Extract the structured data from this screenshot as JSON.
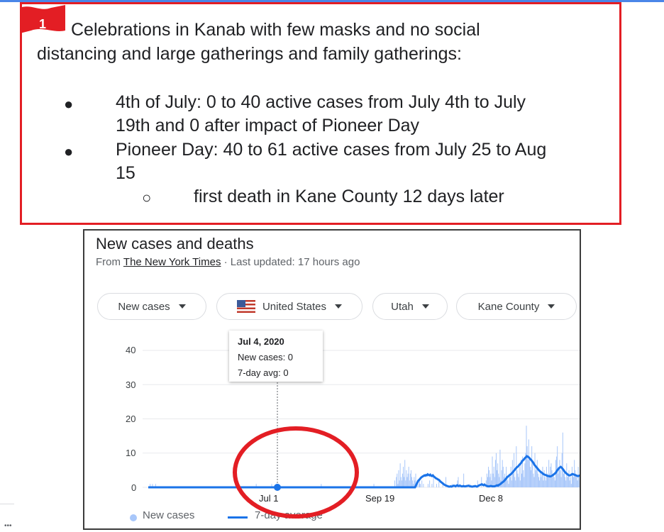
{
  "callout": {
    "flag_number": "1",
    "line1": "Celebrations in Kanab with few masks and no social",
    "line2": "distancing and large gatherings and family gatherings:",
    "bullets": [
      {
        "line1": "4th of July:  0 to 40 active cases from July 4th to July",
        "line2": "19th and 0 after impact of Pioneer Day"
      },
      {
        "line1": "Pioneer Day: 40 to 61 active cases from July 25 to Aug",
        "line2": "15"
      }
    ],
    "sub_bullet": "first death in Kane County 12 days later",
    "bullet_glyph": "●",
    "sub_bullet_glyph": "○"
  },
  "card": {
    "title": "New cases and deaths",
    "from_label": "From ",
    "source": "The New York Times",
    "updated": " · Last updated: 17 hours ago",
    "filters": {
      "metric": "New cases",
      "country": "United States",
      "state": "Utah",
      "county": "Kane County"
    },
    "tooltip": {
      "date": "Jul 4, 2020",
      "new_cases": "New cases: 0",
      "avg": "7-day avg: 0"
    },
    "legend": {
      "new_cases": "New cases",
      "avg": "7-day average"
    }
  },
  "chart_data": {
    "type": "bar",
    "x_unit": "days",
    "yticks": [
      "0",
      "10",
      "20",
      "30",
      "40"
    ],
    "xticks": [
      "Jul 1",
      "Sep 19",
      "Dec 8"
    ],
    "ylim": [
      0,
      40
    ],
    "series": [
      {
        "name": "New cases",
        "color": "#a8c7fa",
        "values": [
          0,
          0,
          1,
          0,
          0,
          1,
          0,
          0,
          0,
          1,
          0,
          0,
          0,
          0,
          0,
          0,
          0,
          0,
          0,
          0,
          0,
          0,
          0,
          0,
          0,
          0,
          0,
          0,
          0,
          0,
          0,
          0,
          0,
          0,
          0,
          0,
          0,
          0,
          0,
          0,
          0,
          0,
          0,
          0,
          0,
          0,
          0,
          0,
          0,
          0,
          0,
          0,
          0,
          0,
          0,
          0,
          0,
          0,
          0,
          0,
          0,
          0,
          0,
          0,
          0,
          0,
          0,
          0,
          0,
          0,
          0,
          0,
          0,
          0,
          0,
          0,
          0,
          0,
          0,
          0,
          0,
          0,
          0,
          0,
          0,
          0,
          0,
          0,
          0,
          0,
          0,
          0,
          0,
          0,
          0,
          0,
          0,
          0,
          0,
          0,
          0,
          0,
          0,
          0,
          0,
          0,
          0,
          0,
          0,
          0,
          0,
          0,
          0,
          0,
          0,
          0,
          0,
          0,
          0,
          0,
          0,
          0,
          0,
          0,
          0,
          0,
          0,
          0,
          0,
          0,
          0,
          0,
          0,
          0,
          0,
          0,
          0,
          0,
          0,
          1,
          0,
          0,
          0,
          0,
          0,
          0,
          0,
          0,
          0,
          0,
          0,
          0,
          0,
          0,
          0,
          0,
          0,
          0,
          0,
          1,
          0,
          0,
          0,
          0,
          0,
          0,
          0,
          0,
          0,
          0,
          0,
          0,
          0,
          0,
          0,
          0,
          0,
          0,
          0,
          0,
          0,
          0,
          0,
          0,
          0,
          0,
          0,
          0,
          0,
          0,
          0,
          0,
          0,
          0,
          0,
          0,
          0,
          0,
          0,
          0,
          0,
          0,
          0,
          0,
          0,
          0,
          0,
          0,
          0,
          0,
          0,
          0,
          0,
          0,
          0,
          0,
          0,
          0,
          0,
          0,
          0,
          0,
          0,
          1,
          0,
          0,
          0,
          0,
          0,
          0,
          0,
          0,
          0,
          0,
          0,
          0,
          0,
          0,
          0,
          0,
          0,
          0,
          0,
          0,
          0,
          0,
          0,
          0,
          0,
          0,
          0,
          0,
          0,
          0,
          0,
          0,
          0,
          0,
          0,
          0,
          0,
          0,
          0,
          0,
          0,
          0,
          0,
          0,
          0,
          0,
          0,
          0,
          0,
          0,
          0,
          0,
          0,
          0,
          0,
          0,
          0,
          0,
          0,
          0,
          0,
          0,
          0,
          0,
          0,
          0,
          0,
          1,
          0,
          0,
          0,
          0,
          0,
          0,
          0,
          0,
          0,
          0,
          0,
          0,
          0,
          0,
          0,
          0,
          0,
          0,
          0,
          0,
          0,
          0,
          0,
          0,
          0,
          0,
          2,
          0,
          3,
          4,
          1,
          5,
          2,
          7,
          3,
          2,
          4,
          6,
          3,
          8,
          2,
          5,
          3,
          4,
          6,
          2,
          4,
          5,
          3,
          2,
          1,
          3,
          2,
          4,
          1,
          2,
          0,
          1,
          2,
          1,
          0,
          2,
          0,
          1,
          0,
          0,
          0,
          0,
          0,
          1,
          0,
          2,
          0,
          0,
          1,
          0,
          3,
          0,
          0,
          0,
          1,
          0,
          0,
          2,
          0,
          0,
          0,
          0,
          1,
          0,
          0,
          0,
          3,
          0,
          0,
          0,
          0,
          0,
          0,
          0,
          1,
          0,
          0,
          0,
          0,
          0,
          0,
          2,
          3,
          0,
          1,
          0,
          0,
          0,
          0,
          4,
          0,
          0,
          0,
          0,
          0,
          0,
          0,
          1,
          0,
          0,
          0,
          0,
          0,
          0,
          0,
          0,
          0,
          2,
          0,
          0,
          0,
          0,
          3,
          0,
          0,
          0,
          0,
          0,
          2,
          4,
          3,
          6,
          5,
          3,
          4,
          2,
          9,
          4,
          6,
          3,
          8,
          10,
          5,
          7,
          4,
          3,
          11,
          2,
          5,
          8,
          6,
          3,
          4,
          2,
          6,
          3,
          2,
          1,
          4,
          3,
          6,
          2,
          8,
          4,
          10,
          3,
          2,
          12,
          5,
          4,
          3,
          6,
          2,
          8,
          4,
          9,
          5,
          3,
          7,
          10,
          18,
          12,
          8,
          14,
          9,
          6,
          5,
          12,
          8,
          4,
          3,
          10,
          5,
          6,
          8,
          4,
          3,
          2,
          5,
          3,
          4,
          6,
          2,
          5,
          3,
          2,
          6,
          4,
          3,
          8,
          4,
          6,
          7,
          5,
          3,
          4,
          3,
          2,
          8,
          9,
          12,
          4,
          6,
          8,
          5,
          3,
          10,
          16,
          4,
          5,
          3,
          2,
          7,
          3,
          4,
          5,
          2,
          3,
          1,
          6,
          4,
          3,
          8,
          5,
          4,
          3,
          2,
          6,
          3,
          2,
          8
        ]
      },
      {
        "name": "7-day average",
        "color": "#1a73e8",
        "values": [
          0,
          0,
          0,
          0,
          0,
          0,
          0,
          0,
          0,
          0,
          0,
          0,
          0,
          0,
          0,
          0,
          0,
          0,
          0,
          0,
          0,
          0,
          0,
          0,
          0,
          0,
          0,
          0,
          0,
          0,
          0,
          0,
          0,
          0,
          0,
          0,
          0,
          0,
          0,
          0,
          0,
          0,
          0,
          0,
          0,
          0,
          0,
          0,
          0,
          0,
          0,
          0,
          0,
          0,
          0,
          0,
          0,
          0,
          0,
          0,
          0,
          0,
          0,
          0,
          0,
          0,
          0,
          0,
          0,
          0,
          0,
          0,
          0,
          0,
          0,
          0,
          0,
          0,
          0,
          0,
          0,
          0,
          0,
          0,
          0,
          0,
          0,
          0,
          0,
          0,
          0,
          0,
          0,
          0,
          0,
          0,
          0,
          0,
          0,
          0,
          0,
          0,
          0,
          0,
          0,
          0,
          0,
          0,
          0,
          0,
          0,
          0,
          0,
          0,
          0,
          0,
          0,
          0,
          0,
          0,
          0,
          0,
          0,
          0,
          0,
          0,
          0,
          0,
          0,
          0,
          0,
          0,
          0,
          0,
          0,
          0,
          0,
          0,
          0,
          0,
          0,
          0,
          0,
          0,
          0,
          0,
          0,
          0,
          0,
          0,
          0,
          0,
          0,
          0,
          0,
          0,
          0,
          0,
          0,
          0,
          0,
          0,
          0,
          0,
          0,
          0,
          0,
          0,
          0,
          0,
          0,
          0,
          0,
          0,
          0,
          0,
          0,
          0,
          0,
          0,
          0,
          0,
          0,
          0,
          0,
          0,
          0,
          0,
          0,
          0,
          0,
          0,
          0,
          0,
          0,
          0,
          0,
          0,
          0,
          0,
          0,
          0,
          0,
          0,
          0,
          0,
          0,
          0,
          0,
          0,
          0,
          0,
          0,
          0,
          0,
          0,
          0,
          0,
          0,
          0,
          0,
          0,
          0,
          0,
          0,
          0,
          0,
          0,
          0,
          0,
          0,
          0,
          0,
          0,
          0,
          0,
          0,
          0,
          0,
          0,
          0,
          0,
          0,
          0,
          0,
          0,
          0,
          0,
          0,
          0,
          0,
          0,
          0,
          0,
          0,
          0,
          0,
          0,
          0,
          0,
          0,
          0,
          0,
          0,
          0,
          0,
          0,
          0,
          0,
          0,
          0,
          0,
          0,
          0,
          0,
          0,
          0,
          0,
          0,
          0,
          0,
          0,
          0,
          0,
          0,
          0,
          0,
          0,
          0,
          0,
          0,
          0,
          0,
          0,
          0,
          0,
          0,
          0,
          0,
          0,
          0,
          0,
          0,
          0,
          0,
          0,
          0,
          0,
          0,
          0,
          0,
          0,
          0,
          0,
          0,
          0,
          0.5,
          1,
          1.5,
          2,
          2.2,
          2.5,
          2.8,
          3,
          3.2,
          3.3,
          3.5,
          3.4,
          3.6,
          3.5,
          3.8,
          3.6,
          3.5,
          3.7,
          3.4,
          3.3,
          3.5,
          3.2,
          3,
          2.8,
          2.6,
          2.5,
          2.3,
          2.2,
          2,
          1.7,
          1.5,
          1.3,
          1.1,
          0.9,
          0.7,
          0.6,
          0.5,
          0.4,
          0.3,
          0.2,
          0.2,
          0.3,
          0.2,
          0.3,
          0.4,
          0.5,
          0.4,
          0.3,
          0.5,
          0.6,
          0.4,
          0.4,
          0.5,
          0.4,
          0.3,
          0.3,
          0.4,
          0.3,
          0.3,
          0.3,
          0.4,
          0.4,
          0.5,
          0.4,
          0.3,
          0.3,
          0.2,
          0.2,
          0.3,
          0.3,
          0.4,
          0.3,
          0.2,
          0.3,
          0.5,
          0.6,
          0.7,
          0.8,
          0.9,
          0.7,
          0.6,
          0.8,
          0.6,
          0.5,
          0.4,
          0.3,
          0.3,
          0.3,
          0.4,
          0.4,
          0.3,
          0.3,
          0.3,
          0.3,
          0.4,
          0.5,
          0.6,
          0.5,
          0.7,
          0.8,
          1,
          1.2,
          1.4,
          1.6,
          1.8,
          2.1,
          2.4,
          2.7,
          3,
          3.2,
          3.4,
          3.6,
          3.8,
          4,
          4.3,
          4.6,
          4.9,
          5.2,
          5.5,
          5.8,
          6,
          6.2,
          6.5,
          6.8,
          7,
          7.4,
          7.8,
          8,
          8.3,
          8.6,
          8.8,
          9.1,
          9,
          8.8,
          8.6,
          8.3,
          8,
          7.7,
          7.4,
          7,
          6.6,
          6.3,
          6,
          5.7,
          5.4,
          5.1,
          4.8,
          4.6,
          4.4,
          4.2,
          4,
          3.8,
          3.7,
          3.6,
          3.5,
          3.4,
          3.3,
          3.3,
          3.2,
          3.2,
          3.3,
          3.4,
          3.6,
          3.8,
          4,
          4.2,
          4.6,
          5,
          5.3,
          5.6,
          5.8,
          6,
          5.8,
          5.5,
          5.2,
          4.8,
          4.5,
          4.2,
          4,
          3.8,
          3.6,
          3.5,
          3.5,
          3.6,
          3.8,
          3.9,
          3.8,
          3.7,
          3.6,
          3.5,
          3.4,
          3.3,
          3.3,
          3.4,
          3.5
        ]
      }
    ],
    "marker": {
      "date": "Jul 4, 2020",
      "new_cases": 0,
      "avg": 0
    }
  }
}
